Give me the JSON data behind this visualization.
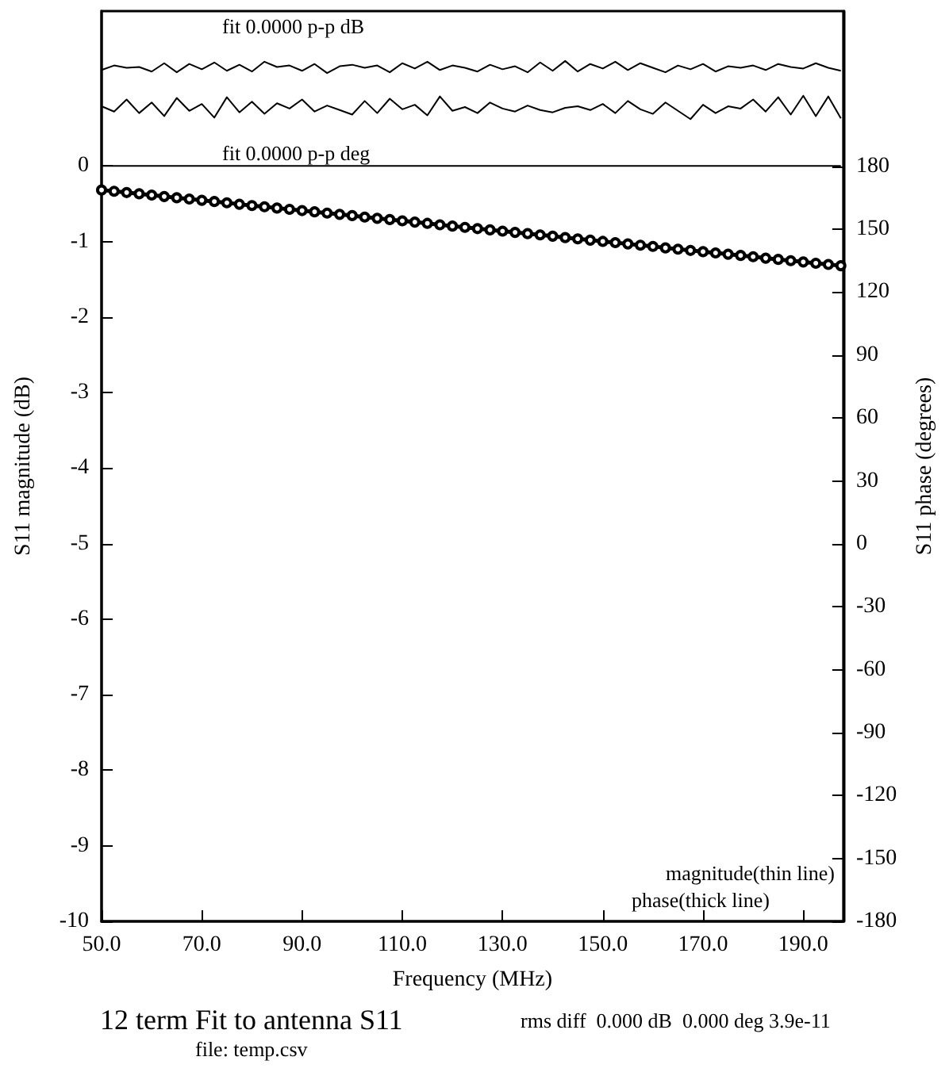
{
  "chart_data": {
    "type": "line",
    "title": "12 term Fit to antenna S11",
    "xlabel": "Frequency (MHz)",
    "ylabel": "S11 magnitude (dB)",
    "y2label": "S11 phase (degrees)",
    "annotations": [
      "fit 0.0000 p-p dB",
      "fit 0.0000 p-p deg",
      "magnitude(thin line)",
      "phase(thick line)",
      "rms diff  0.000 dB  0.000 deg 3.9e-11",
      "file: temp.csv"
    ],
    "x": [
      50,
      52.5,
      55,
      57.5,
      60,
      62.5,
      65,
      67.5,
      70,
      72.5,
      75,
      77.5,
      80,
      82.5,
      85,
      87.5,
      90,
      92.5,
      95,
      97.5,
      100,
      102.5,
      105,
      107.5,
      110,
      112.5,
      115,
      117.5,
      120,
      122.5,
      125,
      127.5,
      130,
      132.5,
      135,
      137.5,
      140,
      142.5,
      145,
      147.5,
      150,
      152.5,
      155,
      157.5,
      160,
      162.5,
      165,
      167.5,
      170,
      172.5,
      175,
      177.5,
      180,
      182.5,
      185,
      187.5,
      190,
      192.5,
      195,
      197.5
    ],
    "series": [
      {
        "color": "#000000",
        "marker": "none",
        "values": [
          1.27,
          1.33,
          1.3,
          1.31,
          1.25,
          1.36,
          1.24,
          1.35,
          1.28,
          1.37,
          1.26,
          1.34,
          1.25,
          1.38,
          1.31,
          1.33,
          1.26,
          1.35,
          1.23,
          1.32,
          1.34,
          1.3,
          1.33,
          1.24,
          1.36,
          1.29,
          1.38,
          1.27,
          1.33,
          1.3,
          1.25,
          1.34,
          1.28,
          1.32,
          1.24,
          1.37,
          1.26,
          1.39,
          1.25,
          1.35,
          1.29,
          1.38,
          1.27,
          1.36,
          1.3,
          1.24,
          1.33,
          1.28,
          1.35,
          1.25,
          1.32,
          1.3,
          1.33,
          1.27,
          1.35,
          1.31,
          1.29,
          1.36,
          1.3,
          1.26
        ]
      },
      {
        "color": "#000000",
        "marker": "none",
        "values": [
          0.79,
          0.72,
          0.88,
          0.7,
          0.84,
          0.66,
          0.9,
          0.73,
          0.82,
          0.64,
          0.91,
          0.71,
          0.85,
          0.69,
          0.83,
          0.76,
          0.88,
          0.72,
          0.8,
          0.74,
          0.68,
          0.86,
          0.7,
          0.89,
          0.75,
          0.81,
          0.67,
          0.92,
          0.73,
          0.78,
          0.7,
          0.84,
          0.76,
          0.72,
          0.8,
          0.74,
          0.71,
          0.77,
          0.79,
          0.74,
          0.82,
          0.7,
          0.86,
          0.75,
          0.69,
          0.84,
          0.73,
          0.62,
          0.81,
          0.7,
          0.79,
          0.76,
          0.88,
          0.72,
          0.91,
          0.68,
          0.93,
          0.66,
          0.92,
          0.63
        ]
      },
      {
        "color": "#000000",
        "marker": "none",
        "values": [
          0,
          0,
          0,
          0,
          0,
          0,
          0,
          0,
          0,
          0,
          0,
          0,
          0,
          0,
          0,
          0,
          0,
          0,
          0,
          0,
          0,
          0,
          0,
          0,
          0,
          0,
          0,
          0,
          0,
          0,
          0,
          0,
          0,
          0,
          0,
          0,
          0,
          0,
          0,
          0,
          0,
          0,
          0,
          0,
          0,
          0,
          0,
          0,
          0,
          0,
          0,
          0,
          0,
          0,
          0,
          0,
          0,
          0,
          0,
          0
        ]
      },
      {
        "color": "#000000",
        "marker": "circle",
        "axis": "y2",
        "values": [
          168.7,
          168.1,
          167.5,
          166.9,
          166.3,
          165.6,
          165.0,
          164.4,
          163.8,
          163.2,
          162.6,
          161.9,
          161.3,
          160.7,
          160.1,
          159.5,
          158.9,
          158.3,
          157.7,
          157.1,
          156.5,
          155.8,
          155.2,
          154.6,
          154.0,
          153.4,
          152.8,
          152.1,
          151.5,
          150.9,
          150.3,
          149.7,
          149.1,
          148.5,
          147.9,
          147.3,
          146.7,
          146.0,
          145.4,
          144.8,
          144.2,
          143.6,
          143.0,
          142.4,
          141.8,
          141.1,
          140.5,
          139.9,
          139.3,
          138.7,
          138.1,
          137.5,
          136.9,
          136.2,
          135.6,
          135.0,
          134.4,
          133.8,
          133.2,
          132.6
        ]
      }
    ],
    "xlim": [
      50,
      198
    ],
    "xticks": [
      {
        "value": 50,
        "label": "50.0"
      },
      {
        "value": 70,
        "label": "70.0"
      },
      {
        "value": 90,
        "label": "90.0"
      },
      {
        "value": 110,
        "label": "110.0"
      },
      {
        "value": 130,
        "label": "130.0"
      },
      {
        "value": 150,
        "label": "150.0"
      },
      {
        "value": 170,
        "label": "170.0"
      },
      {
        "value": 190,
        "label": "190.0"
      }
    ],
    "ylim": [
      -10,
      2.05
    ],
    "yticks": [
      0,
      -1,
      -2,
      -3,
      -4,
      -5,
      -6,
      -7,
      -8,
      -9,
      -10
    ],
    "y2lim": [
      -180,
      254
    ],
    "y2ticks": [
      180,
      150,
      120,
      90,
      60,
      30,
      0,
      -30,
      -60,
      -90,
      -120,
      -150,
      -180
    ]
  }
}
